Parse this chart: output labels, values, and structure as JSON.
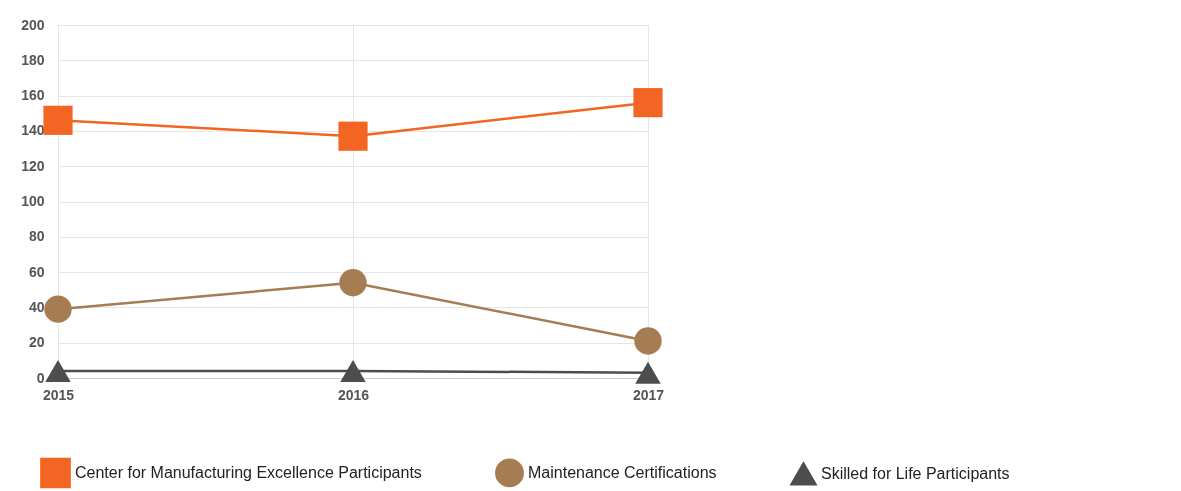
{
  "chart_data": {
    "type": "line",
    "categories": [
      "2015",
      "2016",
      "2017"
    ],
    "series": [
      {
        "name": "Center for Manufacturing Excellence Participants",
        "color": "#f26522",
        "marker": "square",
        "values": [
          146,
          137,
          156
        ]
      },
      {
        "name": "Maintenance Certifications",
        "color": "#a67c52",
        "marker": "circle",
        "values": [
          39,
          54,
          21
        ]
      },
      {
        "name": "Skilled for Life Participants",
        "color": "#4d4d4d",
        "marker": "triangle",
        "values": [
          4,
          4,
          3
        ]
      }
    ],
    "ylim": [
      0,
      200
    ],
    "yticks": [
      0,
      20,
      40,
      60,
      80,
      100,
      120,
      140,
      160,
      180,
      200
    ],
    "grid": true,
    "legend": "bottom"
  }
}
